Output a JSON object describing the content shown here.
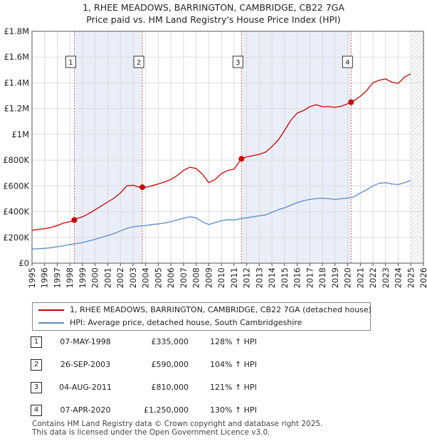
{
  "title_line1": "1, RHEE MEADOWS, BARRINGTON, CAMBRIDGE, CB22 7GA",
  "title_line2": "Price paid vs. HM Land Registry's House Price Index (HPI)",
  "legend": [
    {
      "label": "1, RHEE MEADOWS, BARRINGTON, CAMBRIDGE, CB22 7GA (detached house)",
      "color": "#cc0000"
    },
    {
      "label": "HPI: Average price, detached house, South Cambridgeshire",
      "color": "#5b8ac9"
    }
  ],
  "sales": [
    {
      "n": "1",
      "date": "07-MAY-1998",
      "price": "£335,000",
      "hpi": "128% ↑ HPI"
    },
    {
      "n": "2",
      "date": "26-SEP-2003",
      "price": "£590,000",
      "hpi": "104% ↑ HPI"
    },
    {
      "n": "3",
      "date": "04-AUG-2011",
      "price": "£810,000",
      "hpi": "121% ↑ HPI"
    },
    {
      "n": "4",
      "date": "07-APR-2020",
      "price": "£1,250,000",
      "hpi": "130% ↑ HPI"
    }
  ],
  "footer_line1": "Contains HM Land Registry data © Crown copyright and database right 2025.",
  "footer_line2": "This data is licensed under the Open Government Licence v3.0.",
  "chart_data": {
    "type": "line",
    "title": "1, RHEE MEADOWS, BARRINGTON, CAMBRIDGE, CB22 7GA — Price paid vs. HM Land Registry's House Price Index (HPI)",
    "xlim": [
      1995,
      2026
    ],
    "ylim": [
      0,
      1800000
    ],
    "x_ticks": [
      1995,
      1996,
      1997,
      1998,
      1999,
      2000,
      2001,
      2002,
      2003,
      2004,
      2005,
      2006,
      2007,
      2008,
      2009,
      2010,
      2011,
      2012,
      2013,
      2014,
      2015,
      2016,
      2017,
      2018,
      2019,
      2020,
      2021,
      2022,
      2023,
      2024,
      2025,
      2026
    ],
    "y_ticks": [
      {
        "value": 0,
        "label": "£0"
      },
      {
        "value": 200000,
        "label": "£200K"
      },
      {
        "value": 400000,
        "label": "£400K"
      },
      {
        "value": 600000,
        "label": "£600K"
      },
      {
        "value": 800000,
        "label": "£800K"
      },
      {
        "value": 1000000,
        "label": "£1M"
      },
      {
        "value": 1200000,
        "label": "£1.2M"
      },
      {
        "value": 1400000,
        "label": "£1.4M"
      },
      {
        "value": 1600000,
        "label": "£1.6M"
      },
      {
        "value": 1800000,
        "label": "£1.8M"
      }
    ],
    "shaded_periods": [
      [
        1998.35,
        2003.74
      ],
      [
        2011.59,
        2020.27
      ]
    ],
    "future_hatch_from": 2025.0,
    "grid": true,
    "series": [
      {
        "name": "1, RHEE MEADOWS, BARRINGTON, CAMBRIDGE, CB22 7GA (detached house)",
        "color": "#cc0000",
        "x": [
          1995,
          1995.5,
          1996,
          1996.5,
          1997,
          1997.5,
          1998,
          1998.35,
          1998.5,
          1999,
          1999.5,
          2000,
          2000.5,
          2001,
          2001.5,
          2002,
          2002.5,
          2003,
          2003.5,
          2003.74,
          2004,
          2004.5,
          2005,
          2005.5,
          2006,
          2006.5,
          2007,
          2007.5,
          2008,
          2008.5,
          2009,
          2009.5,
          2010,
          2010.5,
          2011,
          2011.59,
          2012,
          2012.5,
          2013,
          2013.5,
          2014,
          2014.5,
          2015,
          2015.5,
          2016,
          2016.5,
          2017,
          2017.5,
          2018,
          2018.5,
          2019,
          2019.5,
          2020,
          2020.27,
          2020.5,
          2021,
          2021.5,
          2022,
          2022.5,
          2023,
          2023.5,
          2024,
          2024.5,
          2025
        ],
        "y": [
          255000,
          262000,
          268000,
          278000,
          292000,
          312000,
          322000,
          335000,
          345000,
          360000,
          385000,
          415000,
          445000,
          475000,
          505000,
          545000,
          600000,
          605000,
          590000,
          590000,
          588000,
          600000,
          615000,
          630000,
          650000,
          680000,
          720000,
          745000,
          735000,
          690000,
          625000,
          650000,
          695000,
          720000,
          730000,
          810000,
          825000,
          835000,
          845000,
          862000,
          905000,
          955000,
          1030000,
          1110000,
          1165000,
          1185000,
          1215000,
          1230000,
          1215000,
          1215000,
          1210000,
          1218000,
          1238000,
          1250000,
          1262000,
          1295000,
          1340000,
          1400000,
          1420000,
          1430000,
          1405000,
          1395000,
          1445000,
          1470000
        ]
      },
      {
        "name": "HPI: Average price, detached house, South Cambridgeshire",
        "color": "#5b8ac9",
        "x": [
          1995,
          1995.5,
          1996,
          1996.5,
          1997,
          1997.5,
          1998,
          1998.5,
          1999,
          1999.5,
          2000,
          2000.5,
          2001,
          2001.5,
          2002,
          2002.5,
          2003,
          2003.5,
          2004,
          2004.5,
          2005,
          2005.5,
          2006,
          2006.5,
          2007,
          2007.5,
          2008,
          2008.5,
          2009,
          2009.5,
          2010,
          2010.5,
          2011,
          2011.5,
          2012,
          2012.5,
          2013,
          2013.5,
          2014,
          2014.5,
          2015,
          2015.5,
          2016,
          2016.5,
          2017,
          2017.5,
          2018,
          2018.5,
          2019,
          2019.5,
          2020,
          2020.5,
          2021,
          2021.5,
          2022,
          2022.5,
          2023,
          2023.5,
          2024,
          2024.5,
          2025
        ],
        "y": [
          110000,
          112000,
          115000,
          120000,
          128000,
          135000,
          145000,
          152000,
          160000,
          172000,
          185000,
          200000,
          215000,
          230000,
          250000,
          270000,
          282000,
          288000,
          292000,
          300000,
          305000,
          312000,
          322000,
          335000,
          350000,
          360000,
          352000,
          320000,
          300000,
          315000,
          330000,
          338000,
          335000,
          345000,
          352000,
          360000,
          368000,
          375000,
          395000,
          415000,
          430000,
          450000,
          470000,
          485000,
          495000,
          502000,
          505000,
          500000,
          495000,
          500000,
          505000,
          515000,
          545000,
          570000,
          600000,
          620000,
          625000,
          615000,
          610000,
          625000,
          640000
        ]
      }
    ],
    "sale_markers": [
      {
        "n": "1",
        "x": 1998.35,
        "y": 335000
      },
      {
        "n": "2",
        "x": 2003.74,
        "y": 590000
      },
      {
        "n": "3",
        "x": 2011.59,
        "y": 810000
      },
      {
        "n": "4",
        "x": 2020.27,
        "y": 1250000
      }
    ]
  }
}
